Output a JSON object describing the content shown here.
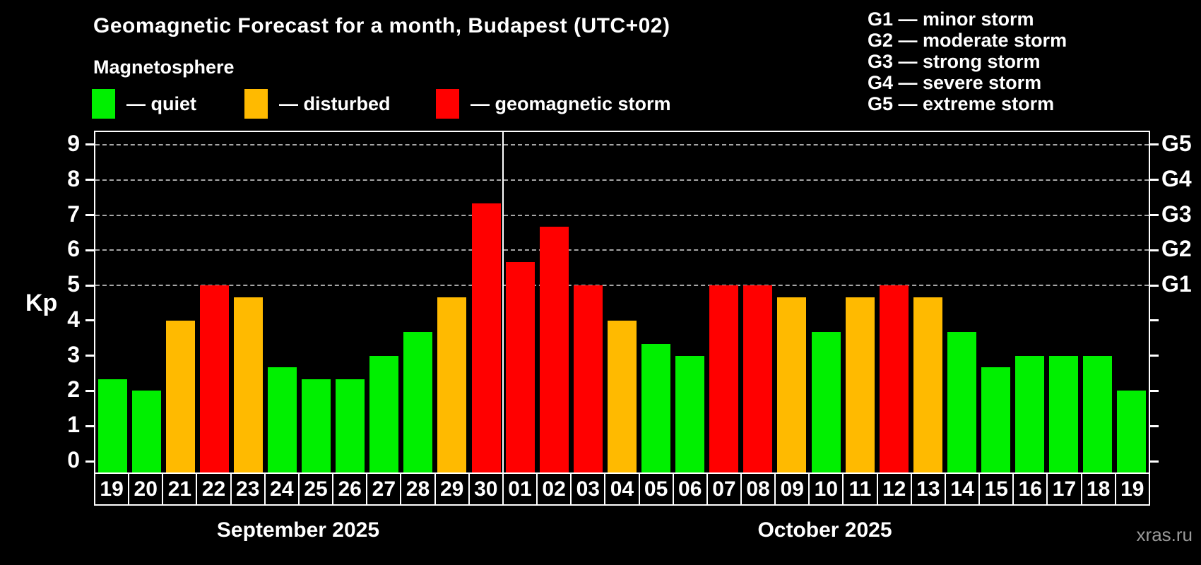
{
  "title": "Geomagnetic Forecast for a month, Budapest (UTC+02)",
  "subtitle": "Magnetosphere",
  "legend": {
    "items": [
      {
        "key": "quiet",
        "label": "— quiet",
        "color": "#00f000"
      },
      {
        "key": "disturbed",
        "label": "— disturbed",
        "color": "#ffba00"
      },
      {
        "key": "storm",
        "label": "— geomagnetic storm",
        "color": "#ff0000"
      }
    ]
  },
  "g_legend": [
    "G1 — minor storm",
    "G2 — moderate storm",
    "G3 — strong storm",
    "G4 — severe storm",
    "G5 — extreme storm"
  ],
  "axes": {
    "y_label": "Kp",
    "y_ticks": [
      0,
      1,
      2,
      3,
      4,
      5,
      6,
      7,
      8,
      9
    ],
    "right_labels": [
      {
        "kp": 5,
        "label": "G1"
      },
      {
        "kp": 6,
        "label": "G2"
      },
      {
        "kp": 7,
        "label": "G3"
      },
      {
        "kp": 8,
        "label": "G4"
      },
      {
        "kp": 9,
        "label": "G5"
      }
    ]
  },
  "watermark": "xras.ru",
  "chart_data": {
    "type": "bar",
    "title": "Geomagnetic Forecast for a month, Budapest (UTC+02)",
    "ylabel": "Kp",
    "ylim": [
      0,
      9
    ],
    "grid_levels": [
      5,
      6,
      7,
      8,
      9
    ],
    "legend_position": "top-left",
    "months": [
      {
        "label": "September 2025",
        "days": [
          {
            "day": "19",
            "value": 2.33,
            "condition": "quiet"
          },
          {
            "day": "20",
            "value": 2.0,
            "condition": "quiet"
          },
          {
            "day": "21",
            "value": 4.0,
            "condition": "disturbed"
          },
          {
            "day": "22",
            "value": 5.0,
            "condition": "storm"
          },
          {
            "day": "23",
            "value": 4.67,
            "condition": "disturbed"
          },
          {
            "day": "24",
            "value": 2.67,
            "condition": "quiet"
          },
          {
            "day": "25",
            "value": 2.33,
            "condition": "quiet"
          },
          {
            "day": "26",
            "value": 2.33,
            "condition": "quiet"
          },
          {
            "day": "27",
            "value": 3.0,
            "condition": "quiet"
          },
          {
            "day": "28",
            "value": 3.67,
            "condition": "quiet"
          },
          {
            "day": "29",
            "value": 4.67,
            "condition": "disturbed"
          },
          {
            "day": "30",
            "value": 7.33,
            "condition": "storm"
          }
        ]
      },
      {
        "label": "October 2025",
        "days": [
          {
            "day": "01",
            "value": 5.67,
            "condition": "storm"
          },
          {
            "day": "02",
            "value": 6.67,
            "condition": "storm"
          },
          {
            "day": "03",
            "value": 5.0,
            "condition": "storm"
          },
          {
            "day": "04",
            "value": 4.0,
            "condition": "disturbed"
          },
          {
            "day": "05",
            "value": 3.33,
            "condition": "quiet"
          },
          {
            "day": "06",
            "value": 3.0,
            "condition": "quiet"
          },
          {
            "day": "07",
            "value": 5.0,
            "condition": "storm"
          },
          {
            "day": "08",
            "value": 5.0,
            "condition": "storm"
          },
          {
            "day": "09",
            "value": 4.67,
            "condition": "disturbed"
          },
          {
            "day": "10",
            "value": 3.67,
            "condition": "quiet"
          },
          {
            "day": "11",
            "value": 4.67,
            "condition": "disturbed"
          },
          {
            "day": "12",
            "value": 5.0,
            "condition": "storm"
          },
          {
            "day": "13",
            "value": 4.67,
            "condition": "disturbed"
          },
          {
            "day": "14",
            "value": 3.67,
            "condition": "quiet"
          },
          {
            "day": "15",
            "value": 2.67,
            "condition": "quiet"
          },
          {
            "day": "16",
            "value": 3.0,
            "condition": "quiet"
          },
          {
            "day": "17",
            "value": 3.0,
            "condition": "quiet"
          },
          {
            "day": "18",
            "value": 3.0,
            "condition": "quiet"
          },
          {
            "day": "19",
            "value": 2.0,
            "condition": "quiet"
          }
        ]
      }
    ]
  }
}
